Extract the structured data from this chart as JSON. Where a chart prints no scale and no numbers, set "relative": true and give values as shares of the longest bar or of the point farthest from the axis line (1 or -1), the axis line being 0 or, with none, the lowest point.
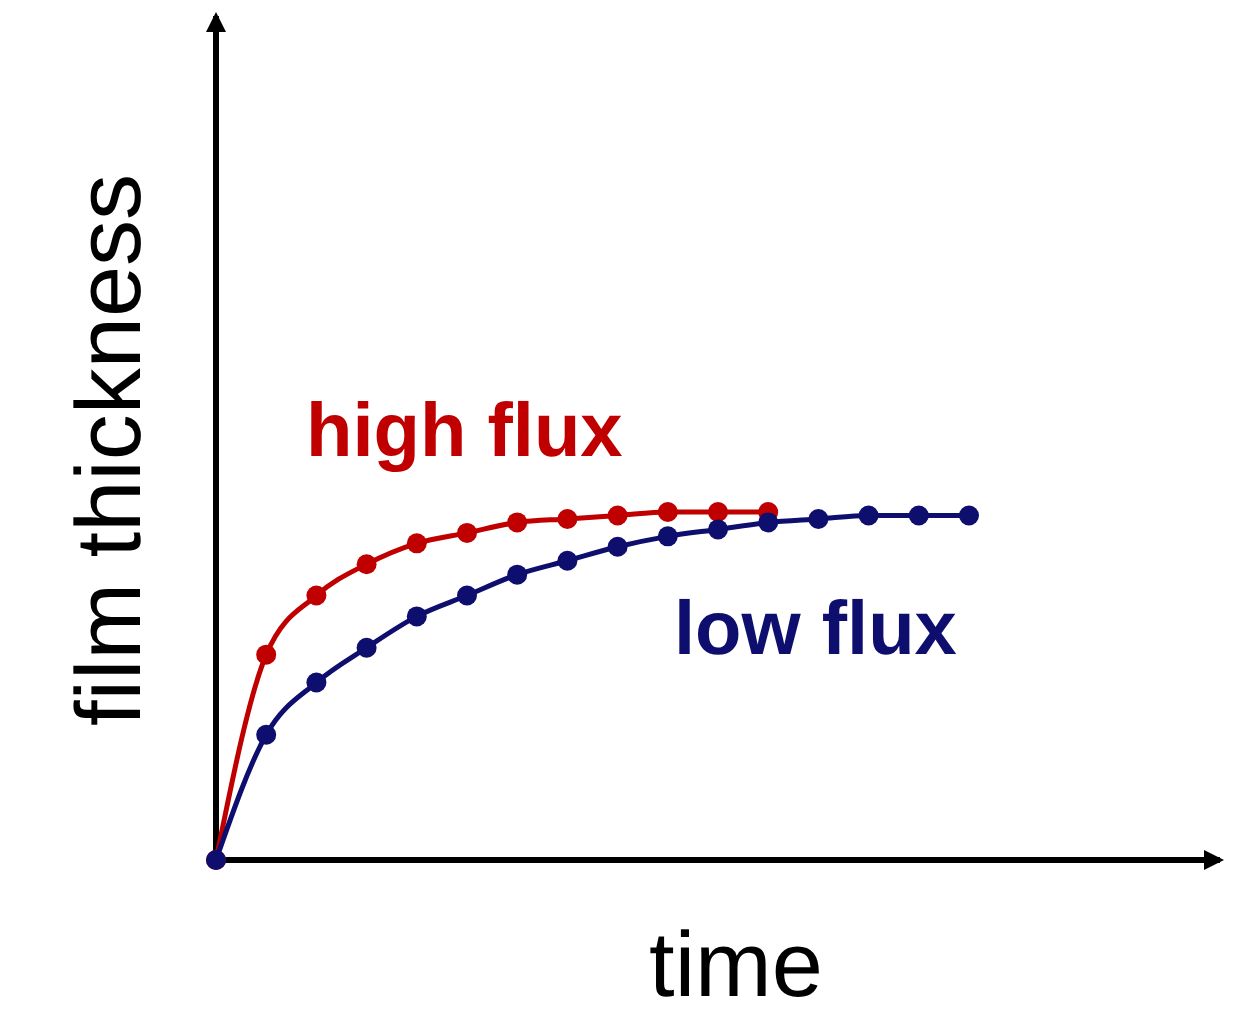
{
  "chart_data": {
    "type": "line",
    "relative": true,
    "xlabel": "time",
    "ylabel": "film thickness",
    "marker": "circle",
    "line_style": "solid",
    "categories": [
      null,
      null,
      null,
      null,
      null,
      null,
      null,
      null,
      null,
      null,
      null,
      null,
      null,
      null,
      null,
      null
    ],
    "series": [
      {
        "name": "high flux",
        "color": "#c00000",
        "values": [
          0,
          0.59,
          0.76,
          0.85,
          0.91,
          0.94,
          0.97,
          0.98,
          0.99,
          1,
          1,
          1,
          null,
          null,
          null,
          null
        ]
      },
      {
        "name": "low flux",
        "color": "#0e0e6e",
        "values": [
          0,
          0.36,
          0.51,
          0.61,
          0.7,
          0.76,
          0.82,
          0.86,
          0.9,
          0.93,
          0.95,
          0.97,
          0.98,
          0.99,
          0.99,
          0.99
        ]
      }
    ]
  }
}
